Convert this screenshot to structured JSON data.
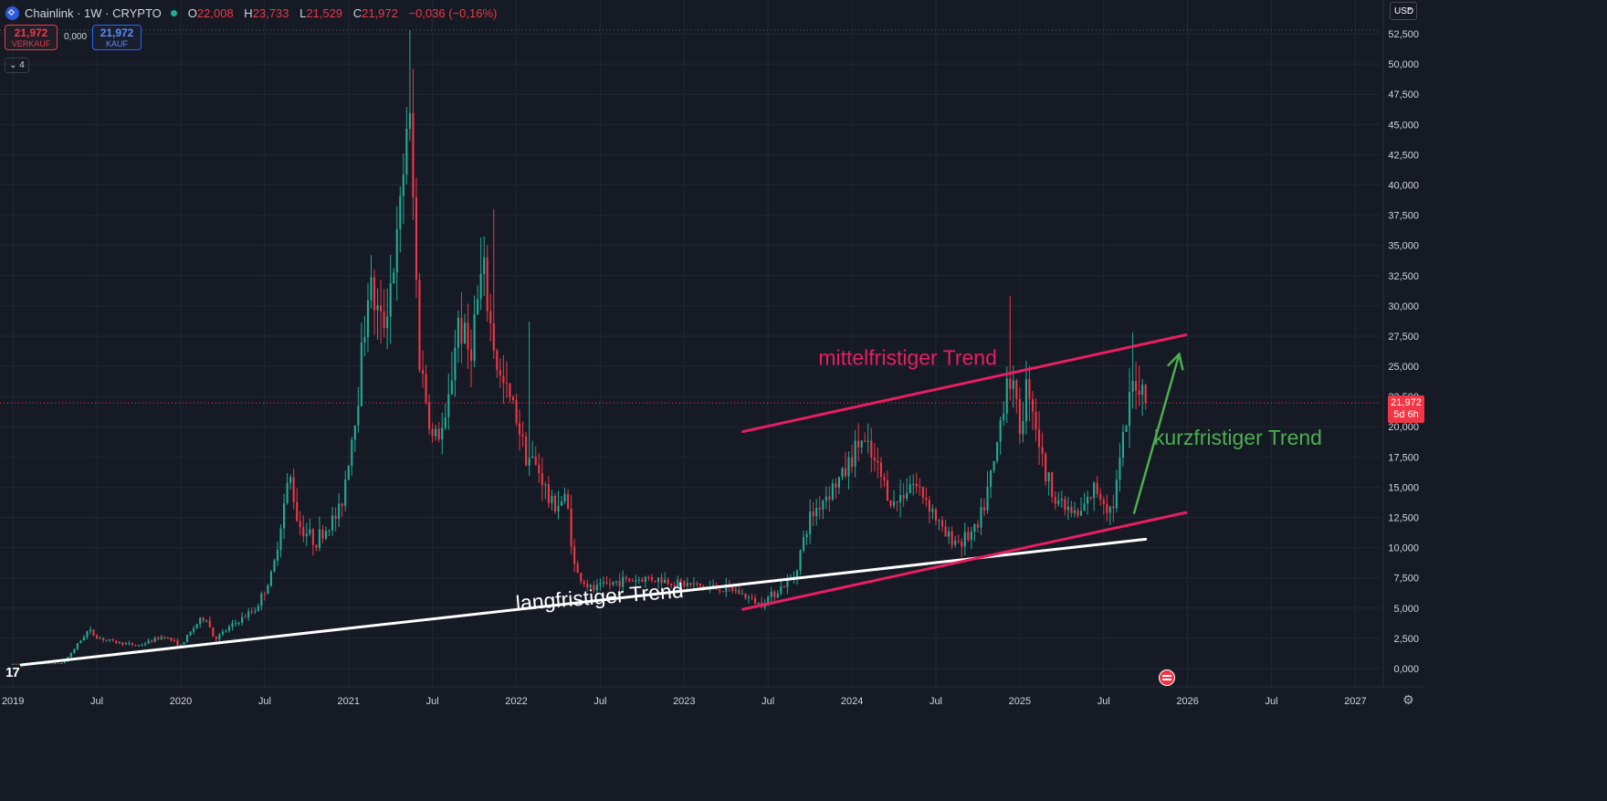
{
  "header": {
    "symbol_label": "Chainlink · 1W · CRYPTO",
    "ohlc": [
      {
        "k": "O",
        "v": "22,008"
      },
      {
        "k": "H",
        "v": "23,733"
      },
      {
        "k": "L",
        "v": "21,529"
      },
      {
        "k": "C",
        "v": "21,972"
      }
    ],
    "change": "−0,036 (−0,16%)"
  },
  "trade": {
    "sell_price": "21,972",
    "sell_label": "VERKAUF",
    "spread": "0,000",
    "buy_price": "21,972",
    "buy_label": "KAUF"
  },
  "indicator_count": "4",
  "currency": "USD",
  "price_tag": {
    "price": "21,972",
    "countdown": "5d 6h"
  },
  "colors": {
    "up": "#22ab94",
    "down": "#f23645",
    "background": "#161a25"
  },
  "chart_data": {
    "type": "candlestick",
    "y_ticks": [
      "52,500",
      "50,000",
      "47,500",
      "45,000",
      "42,500",
      "40,000",
      "37,500",
      "35,000",
      "32,500",
      "30,000",
      "27,500",
      "25,000",
      "22,500",
      "20,000",
      "17,500",
      "15,000",
      "12,500",
      "10,000",
      "7,500",
      "5,000",
      "2,500",
      "0,000"
    ],
    "ylim": [
      0,
      52.5
    ],
    "x_ticks": [
      {
        "label": "2019",
        "x": 2019.0
      },
      {
        "label": "Jul",
        "x": 2019.5
      },
      {
        "label": "2020",
        "x": 2020.0
      },
      {
        "label": "Jul",
        "x": 2020.5
      },
      {
        "label": "2021",
        "x": 2021.0
      },
      {
        "label": "Jul",
        "x": 2021.5
      },
      {
        "label": "2022",
        "x": 2022.0
      },
      {
        "label": "Jul",
        "x": 2022.5
      },
      {
        "label": "2023",
        "x": 2023.0
      },
      {
        "label": "Jul",
        "x": 2023.5
      },
      {
        "label": "2024",
        "x": 2024.0
      },
      {
        "label": "Jul",
        "x": 2024.5
      },
      {
        "label": "2025",
        "x": 2025.0
      },
      {
        "label": "Jul",
        "x": 2025.5
      },
      {
        "label": "2026",
        "x": 2026.0
      },
      {
        "label": "Jul",
        "x": 2026.5
      },
      {
        "label": "2027",
        "x": 2027.0
      }
    ],
    "xlim": [
      2018.95,
      2027.15
    ],
    "last_price": 21.972,
    "price_anchors": [
      [
        2019.0,
        0.38
      ],
      [
        2019.3,
        0.45
      ],
      [
        2019.45,
        3.2
      ],
      [
        2019.5,
        2.6
      ],
      [
        2019.6,
        2.2
      ],
      [
        2019.75,
        1.9
      ],
      [
        2019.9,
        2.7
      ],
      [
        2020.0,
        1.9
      ],
      [
        2020.1,
        3.8
      ],
      [
        2020.15,
        4.3
      ],
      [
        2020.2,
        2.4
      ],
      [
        2020.3,
        3.5
      ],
      [
        2020.45,
        5.0
      ],
      [
        2020.55,
        8.0
      ],
      [
        2020.6,
        12.5
      ],
      [
        2020.65,
        16.0
      ],
      [
        2020.7,
        12.0
      ],
      [
        2020.8,
        10.5
      ],
      [
        2020.95,
        13.0
      ],
      [
        2021.05,
        22.0
      ],
      [
        2021.12,
        32.0
      ],
      [
        2021.2,
        28.0
      ],
      [
        2021.3,
        36.0
      ],
      [
        2021.35,
        46.0
      ],
      [
        2021.37,
        44.0
      ],
      [
        2021.42,
        26.0
      ],
      [
        2021.5,
        19.0
      ],
      [
        2021.58,
        20.0
      ],
      [
        2021.65,
        29.0
      ],
      [
        2021.72,
        26.0
      ],
      [
        2021.8,
        33.0
      ],
      [
        2021.85,
        28.0
      ],
      [
        2021.9,
        24.0
      ],
      [
        2022.0,
        21.0
      ],
      [
        2022.05,
        18.0
      ],
      [
        2022.15,
        16.0
      ],
      [
        2022.2,
        13.5
      ],
      [
        2022.3,
        14.0
      ],
      [
        2022.35,
        8.0
      ],
      [
        2022.45,
        6.5
      ],
      [
        2022.6,
        7.2
      ],
      [
        2022.8,
        7.5
      ],
      [
        2023.0,
        7.0
      ],
      [
        2023.1,
        6.8
      ],
      [
        2023.3,
        6.5
      ],
      [
        2023.45,
        5.3
      ],
      [
        2023.55,
        6.4
      ],
      [
        2023.65,
        7.5
      ],
      [
        2023.75,
        12.5
      ],
      [
        2023.85,
        14.5
      ],
      [
        2023.95,
        16.0
      ],
      [
        2024.05,
        19.0
      ],
      [
        2024.15,
        16.5
      ],
      [
        2024.25,
        13.5
      ],
      [
        2024.35,
        15.5
      ],
      [
        2024.45,
        14.0
      ],
      [
        2024.55,
        11.0
      ],
      [
        2024.65,
        10.5
      ],
      [
        2024.75,
        11.5
      ],
      [
        2024.85,
        17.0
      ],
      [
        2024.93,
        25.0
      ],
      [
        2025.0,
        20.0
      ],
      [
        2025.05,
        24.0
      ],
      [
        2025.15,
        16.0
      ],
      [
        2025.25,
        13.5
      ],
      [
        2025.35,
        12.5
      ],
      [
        2025.45,
        15.0
      ],
      [
        2025.55,
        13.0
      ],
      [
        2025.62,
        19.0
      ],
      [
        2025.68,
        24.0
      ],
      [
        2025.72,
        23.5
      ],
      [
        2025.76,
        21.972
      ]
    ],
    "trendlines": [
      {
        "label": "",
        "color": "#ffffff",
        "points": [
          [
            2019.05,
            0.3
          ],
          [
            2025.75,
            10.7
          ]
        ]
      },
      {
        "label": "",
        "color": "#e91e63",
        "points": [
          [
            2023.35,
            4.9
          ],
          [
            2025.99,
            12.9
          ]
        ]
      },
      {
        "label": "",
        "color": "#e91e63",
        "points": [
          [
            2023.35,
            19.6
          ],
          [
            2025.99,
            27.6
          ]
        ]
      }
    ],
    "annotations": [
      {
        "text": "mittelfristiger Trend",
        "color": "#e91e63",
        "x": 2023.8,
        "y": 25.1
      },
      {
        "text": "langfristiger Trend",
        "color": "#ffffff",
        "x": 2022.0,
        "y": 4.8
      },
      {
        "text": "kurzfristiger Trend",
        "color": "#4caf50",
        "x": 2025.8,
        "y": 18.5
      }
    ],
    "arrow": {
      "color": "#4caf50",
      "from": [
        2025.68,
        12.8
      ],
      "to": [
        2025.95,
        26.0
      ]
    }
  }
}
